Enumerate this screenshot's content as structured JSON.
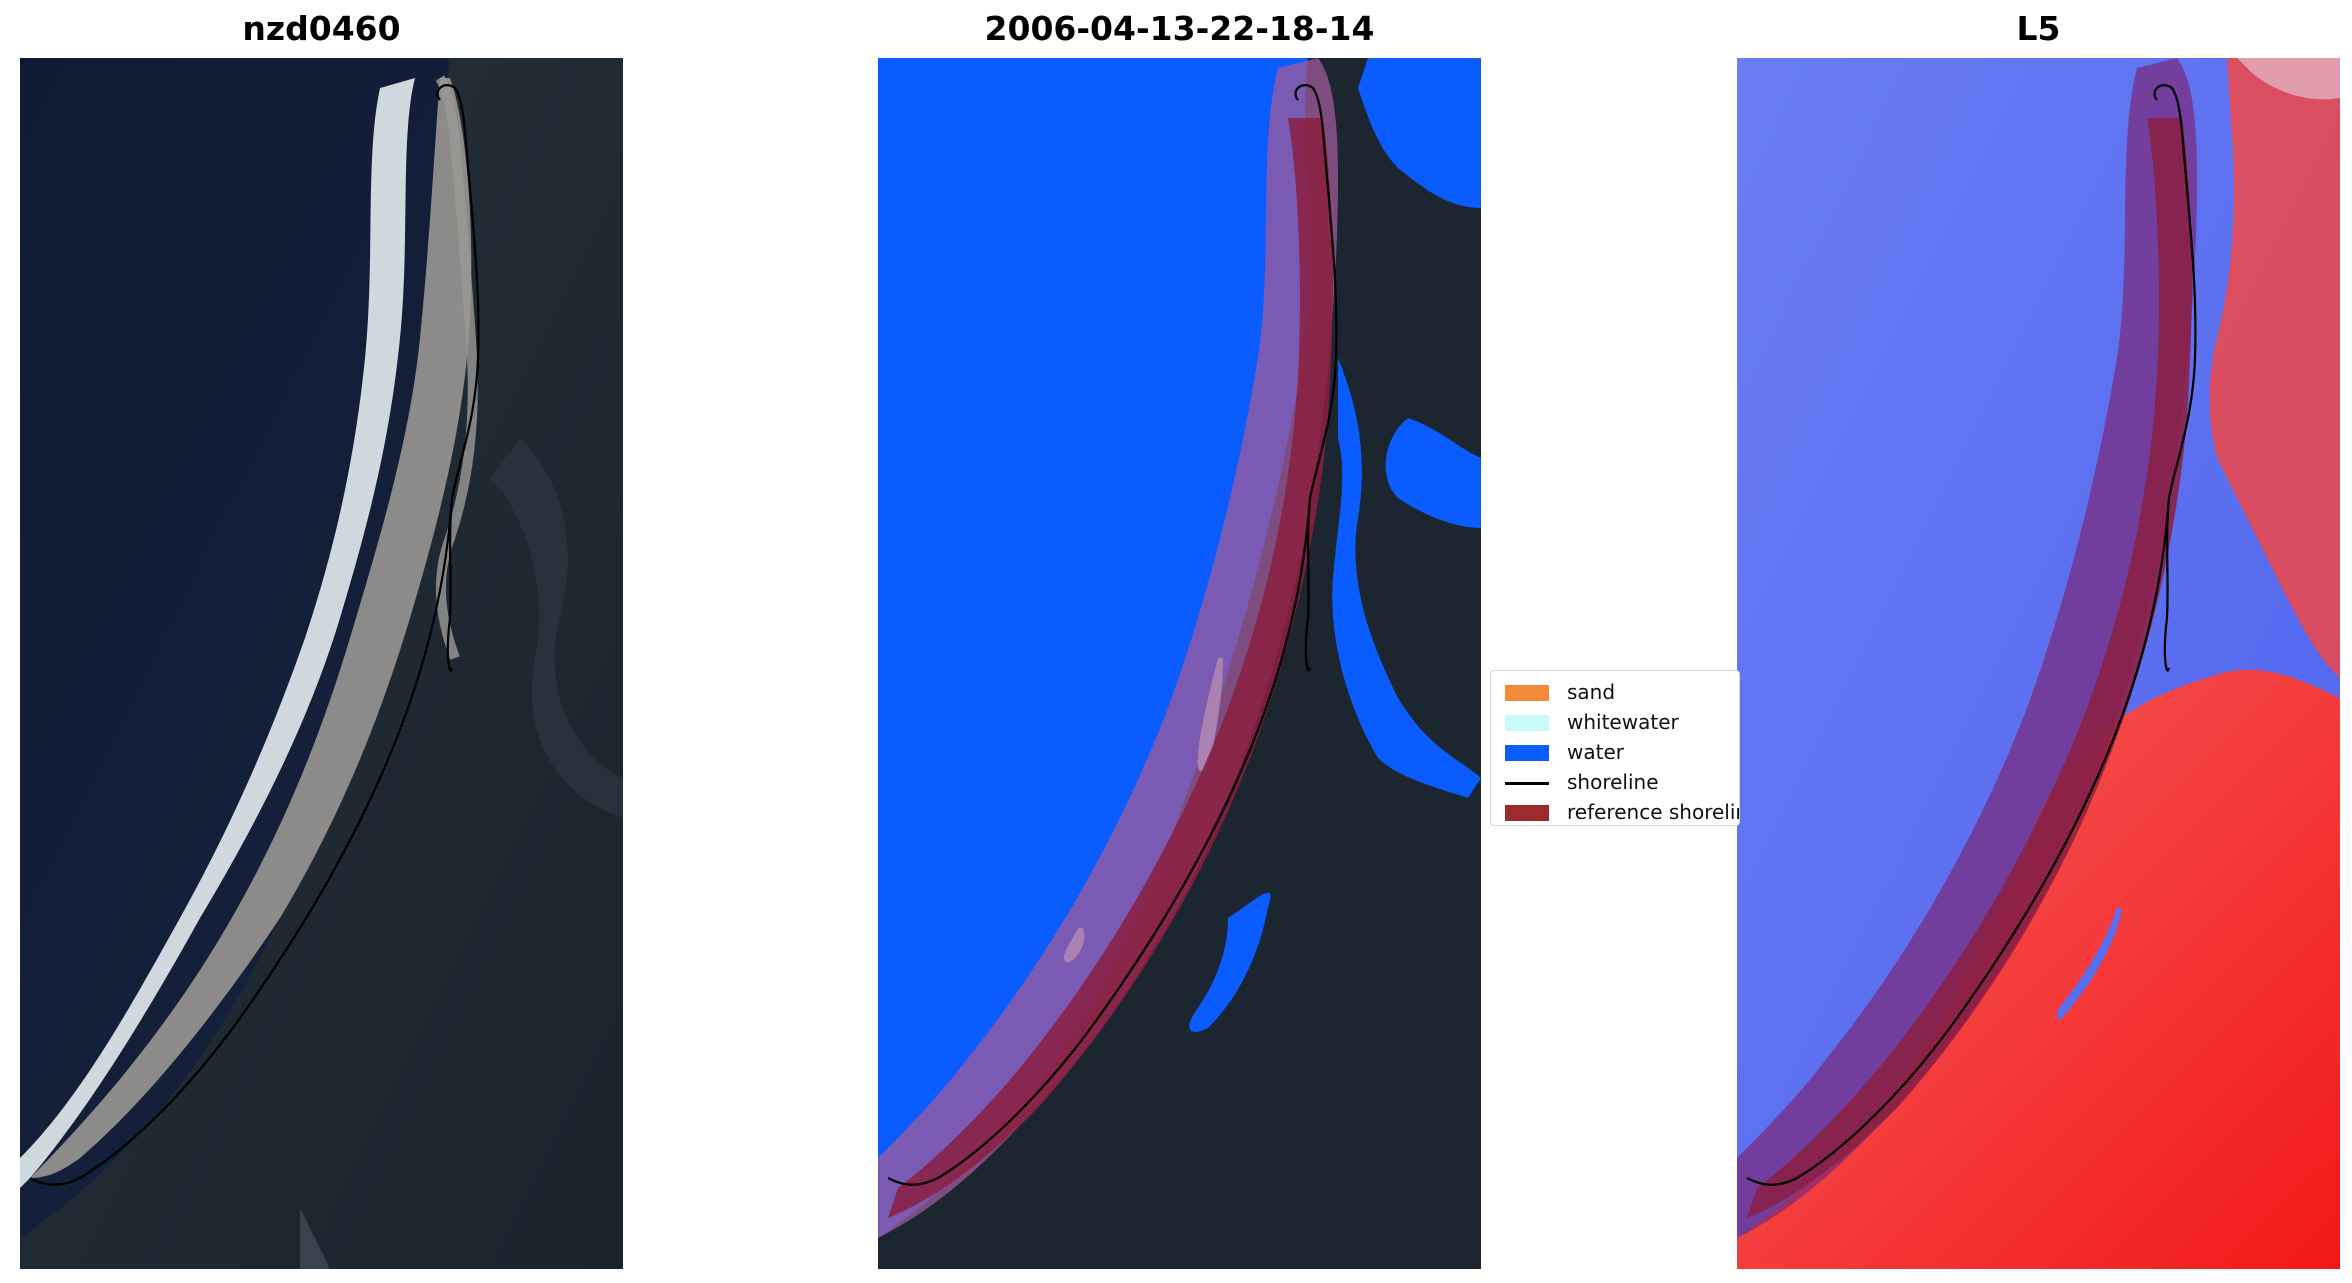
{
  "panels": [
    {
      "title": "nzd0460"
    },
    {
      "title": "2006-04-13-22-18-14"
    },
    {
      "title": "L5"
    }
  ],
  "legend": {
    "items": [
      {
        "label": "sand",
        "kind": "patch",
        "color": "#f28a3a"
      },
      {
        "label": "whitewater",
        "kind": "patch",
        "color": "#c8fafa"
      },
      {
        "label": "water",
        "kind": "patch",
        "color": "#0a5cff"
      },
      {
        "label": "shoreline",
        "kind": "line",
        "color": "#000000"
      },
      {
        "label": "reference shoreline",
        "kind": "patch",
        "color": "#9e2a2b"
      }
    ]
  },
  "colors": {
    "ocean_dark": "#14203a",
    "land_dark": "#1c2630",
    "beach_gray": "#8c8a88",
    "surf_white": "#e6eef2",
    "classified_water": "#0a5cff",
    "buffer_purple": "#7a3a8a",
    "reference_band": "#8b1e3f",
    "mndwi_blue": "#5a6ef0",
    "mndwi_red": "#f23b3b"
  }
}
